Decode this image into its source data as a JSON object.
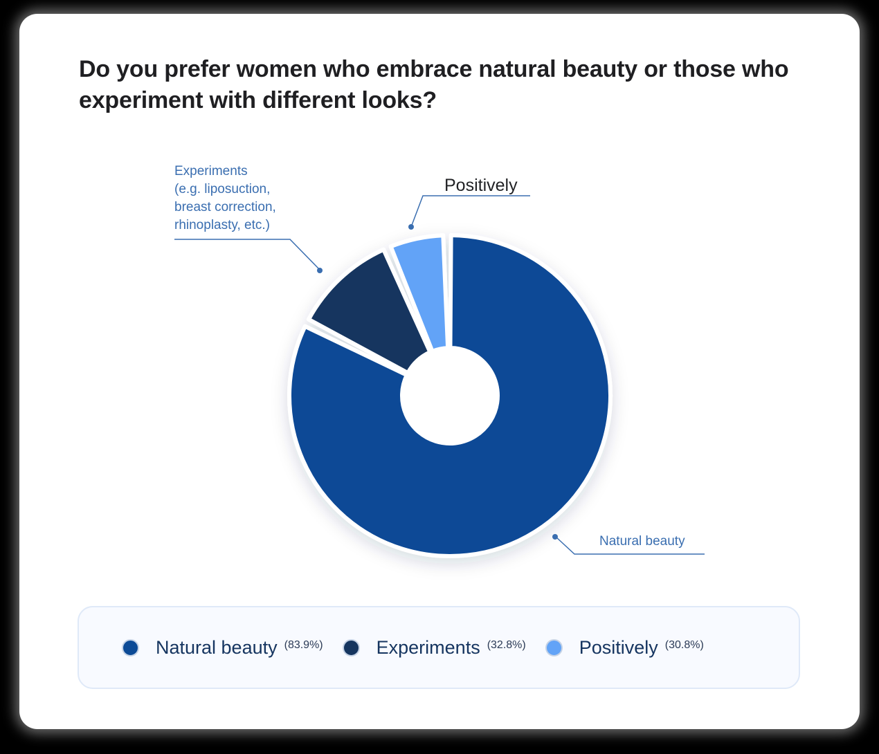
{
  "title": "Do you prefer women who embrace natural beauty or those who experiment with different looks?",
  "colors": {
    "natural_beauty": "#0c4a96",
    "experiments": "#15355f",
    "positively": "#62a3f7",
    "callout_line": "#3a6eb0",
    "title": "#1f1f22"
  },
  "callouts": {
    "experiments": "Experiments\n(e.g. liposuction,\nbreast correction,\nrhinoplasty, etc.)",
    "positively": "Positively",
    "natural_beauty": "Natural beauty"
  },
  "legend": [
    {
      "label": "Natural beauty",
      "value": "(83.9%)",
      "color": "#0c4a96"
    },
    {
      "label": "Experiments",
      "value": "(32.8%)",
      "color": "#15355f"
    },
    {
      "label": "Positively",
      "value": "(30.8%)",
      "color": "#62a3f7"
    }
  ],
  "chart_data": {
    "type": "pie",
    "variant": "donut",
    "title": "Do you prefer women who embrace natural beauty or those who experiment with different looks?",
    "categories": [
      "Natural beauty",
      "Experiments",
      "Positively"
    ],
    "values": [
      83.9,
      32.8,
      30.8
    ],
    "value_labels": [
      "(83.9%)",
      "(32.8%)",
      "(30.8%)"
    ],
    "visual_share_pct": [
      84,
      10,
      6
    ],
    "slice_angles_deg": [
      {
        "name": "Natural beauty",
        "start": 0,
        "end": 296
      },
      {
        "name": "Experiments",
        "start": 298,
        "end": 336
      },
      {
        "name": "Positively",
        "start": 338,
        "end": 358
      }
    ],
    "callout_labels": [
      "Experiments (e.g. liposuction, breast correction, rhinoplasty, etc.)",
      "Positively",
      "Natural beauty"
    ],
    "legend_position": "bottom"
  }
}
